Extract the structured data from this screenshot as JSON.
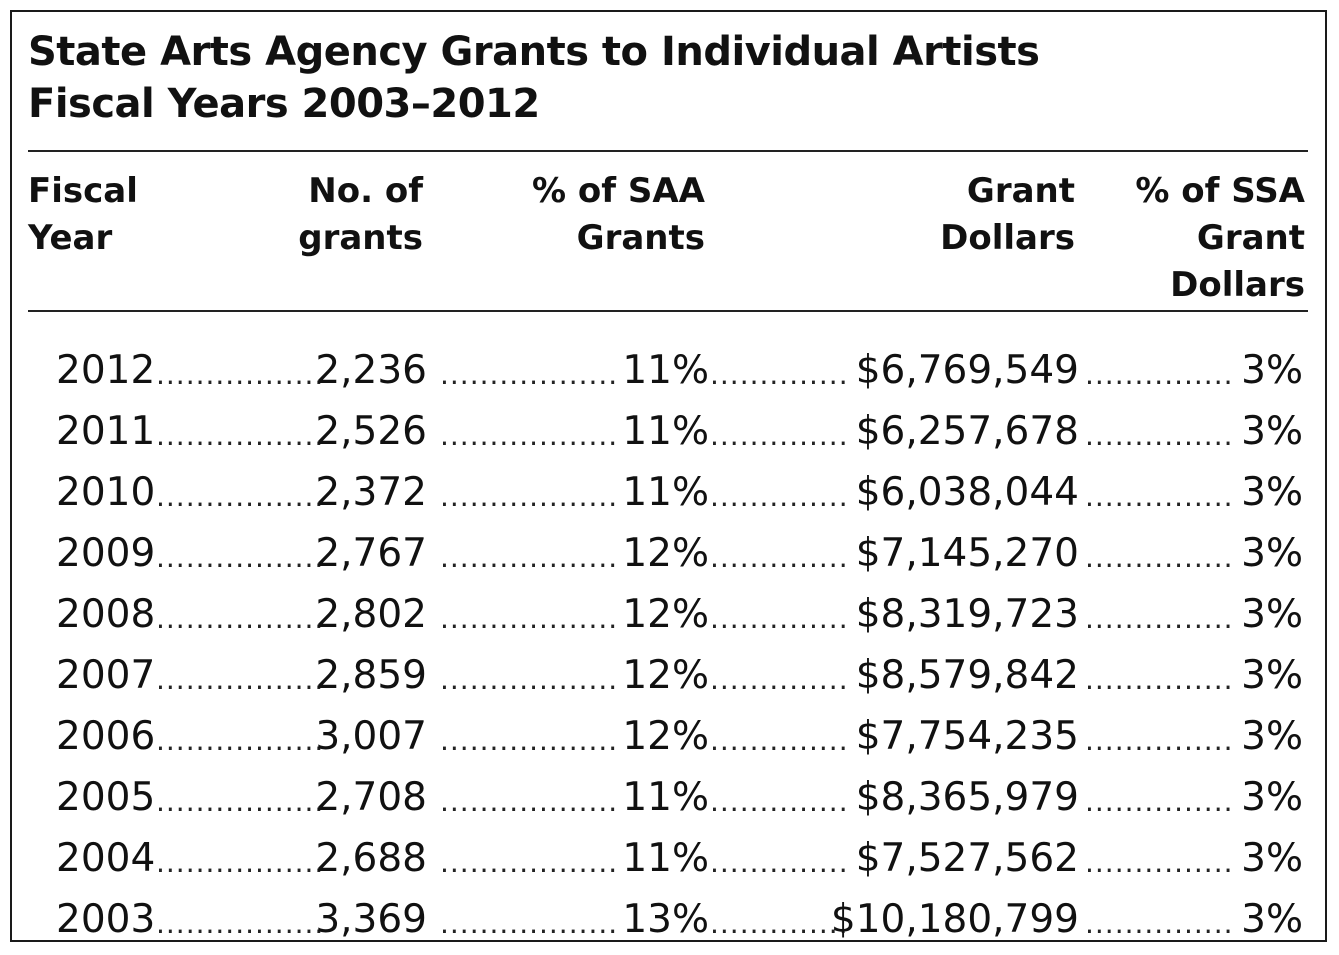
{
  "title": {
    "line1": "State Arts Agency Grants to Individual Artists",
    "line2": "Fiscal Years 2003–2012"
  },
  "columns": {
    "fiscal_year": [
      "Fiscal",
      "Year"
    ],
    "no_of_grants": [
      "No. of",
      "grants"
    ],
    "pct_saa_grants": [
      "% of SAA",
      "Grants"
    ],
    "grant_dollars": [
      "Grant",
      "Dollars"
    ],
    "pct_ssa_grant_dollars": [
      "% of SSA",
      "Grant",
      "Dollars"
    ]
  },
  "rows": [
    {
      "year": "2012",
      "grants": "2,236",
      "pct_grants": "11%",
      "dollars": "$6,769,549",
      "pct_dollars": "3%"
    },
    {
      "year": "2011",
      "grants": "2,526",
      "pct_grants": "11%",
      "dollars": "$6,257,678",
      "pct_dollars": "3%"
    },
    {
      "year": "2010",
      "grants": "2,372",
      "pct_grants": "11%",
      "dollars": "$6,038,044",
      "pct_dollars": "3%"
    },
    {
      "year": "2009",
      "grants": "2,767",
      "pct_grants": "12%",
      "dollars": "$7,145,270",
      "pct_dollars": "3%"
    },
    {
      "year": "2008",
      "grants": "2,802",
      "pct_grants": "12%",
      "dollars": "$8,319,723",
      "pct_dollars": "3%"
    },
    {
      "year": "2007",
      "grants": "2,859",
      "pct_grants": "12%",
      "dollars": "$8,579,842",
      "pct_dollars": "3%"
    },
    {
      "year": "2006",
      "grants": "3,007",
      "pct_grants": "12%",
      "dollars": "$7,754,235",
      "pct_dollars": "3%"
    },
    {
      "year": "2005",
      "grants": "2,708",
      "pct_grants": "11%",
      "dollars": "$8,365,979",
      "pct_dollars": "3%"
    },
    {
      "year": "2004",
      "grants": "2,688",
      "pct_grants": "11%",
      "dollars": "$7,527,562",
      "pct_dollars": "3%"
    },
    {
      "year": "2003",
      "grants": "3,369",
      "pct_grants": "13%",
      "dollars": "$10,180,799",
      "pct_dollars": "3%"
    }
  ]
}
